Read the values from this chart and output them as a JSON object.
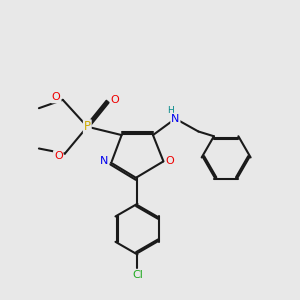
{
  "bg_color": "#e8e8e8",
  "bond_color": "#1a1a1a",
  "bond_lw": 1.5,
  "dbo": 0.055,
  "colors": {
    "N": "#0000ee",
    "O": "#ee0000",
    "P": "#ccaa00",
    "Cl": "#22aa22",
    "NH_H": "#008888",
    "C": "#1a1a1a"
  },
  "fs": 8.0
}
